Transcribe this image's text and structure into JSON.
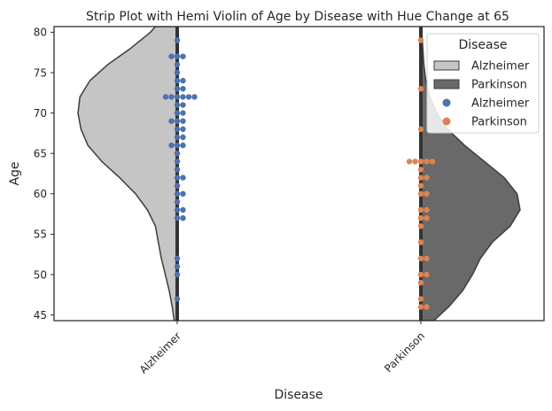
{
  "chart_data": {
    "type": "violin-strip",
    "title": "Strip Plot with Hemi Violin of Age by Disease with Hue Change at 65",
    "xlabel": "Disease",
    "ylabel": "Age",
    "categories": [
      "Alzheimer",
      "Parkinson"
    ],
    "ylim": [
      44.3,
      80.7
    ],
    "yticks": [
      45,
      50,
      55,
      60,
      65,
      70,
      75,
      80
    ],
    "grid": false,
    "legend": {
      "title": "Disease",
      "placement": "top-right",
      "entries": [
        {
          "label": "Alzheimer",
          "kind": "patch",
          "color": "#c5c5c5"
        },
        {
          "label": "Parkinson",
          "kind": "patch",
          "color": "#696969"
        },
        {
          "label": "Alzheimer",
          "kind": "marker",
          "color": "#4c72b0"
        },
        {
          "label": "Parkinson",
          "kind": "marker",
          "color": "#dd8452"
        }
      ]
    },
    "violins": [
      {
        "category": "Alzheimer",
        "side": "left",
        "color": "#c5c5c5",
        "density": [
          [
            44.3,
            0.03
          ],
          [
            46,
            0.05
          ],
          [
            48,
            0.08
          ],
          [
            50,
            0.12
          ],
          [
            52,
            0.16
          ],
          [
            54,
            0.19
          ],
          [
            56,
            0.22
          ],
          [
            58,
            0.3
          ],
          [
            60,
            0.42
          ],
          [
            62,
            0.58
          ],
          [
            64,
            0.76
          ],
          [
            66,
            0.9
          ],
          [
            68,
            0.97
          ],
          [
            70,
            1.0
          ],
          [
            72,
            0.98
          ],
          [
            74,
            0.88
          ],
          [
            76,
            0.7
          ],
          [
            78,
            0.47
          ],
          [
            80,
            0.27
          ],
          [
            80.7,
            0.22
          ]
        ]
      },
      {
        "category": "Parkinson",
        "side": "right",
        "color": "#696969",
        "density": [
          [
            44.3,
            0.13
          ],
          [
            46,
            0.28
          ],
          [
            48,
            0.42
          ],
          [
            50,
            0.52
          ],
          [
            52,
            0.6
          ],
          [
            54,
            0.72
          ],
          [
            56,
            0.9
          ],
          [
            58,
            1.0
          ],
          [
            60,
            0.97
          ],
          [
            62,
            0.84
          ],
          [
            64,
            0.64
          ],
          [
            66,
            0.44
          ],
          [
            68,
            0.27
          ],
          [
            70,
            0.16
          ],
          [
            72,
            0.09
          ],
          [
            74,
            0.05
          ],
          [
            76,
            0.03
          ],
          [
            78,
            0.02
          ],
          [
            80,
            0.01
          ],
          [
            80.7,
            0.0
          ]
        ]
      }
    ],
    "series": [
      {
        "name": "Alzheimer",
        "color": "#4c72b0",
        "category": "Alzheimer",
        "values": [
          79,
          77,
          77,
          77,
          76,
          75,
          74,
          74,
          73,
          73,
          72,
          72,
          72,
          72,
          72,
          72,
          71,
          71,
          70,
          70,
          69,
          69,
          69,
          68,
          68,
          67,
          67,
          66,
          66,
          66,
          65,
          64,
          63,
          62,
          62,
          61,
          60,
          60,
          59,
          58,
          58,
          57,
          57,
          52,
          51,
          50,
          47
        ]
      },
      {
        "name": "Parkinson",
        "color": "#dd8452",
        "category": "Parkinson",
        "values": [
          79,
          73,
          68,
          64,
          64,
          64,
          64,
          64,
          63,
          62,
          62,
          61,
          60,
          60,
          58,
          58,
          57,
          57,
          56,
          54,
          52,
          52,
          50,
          50,
          49,
          47,
          46,
          46
        ]
      }
    ]
  }
}
